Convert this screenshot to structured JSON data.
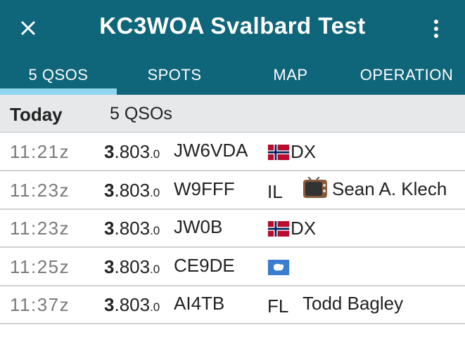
{
  "app_bar": {
    "title": "KC3WOA Svalbard Test"
  },
  "tabs": [
    "5 QSOS",
    "SPOTS",
    "MAP",
    "OPERATION"
  ],
  "summary": {
    "label": "Today",
    "count": "5 QSOs"
  },
  "qsos": [
    {
      "time": "11:21z",
      "frequency": {
        "mhz": "3",
        "khz": ".803",
        "hz": ".0"
      },
      "call": "JW6VDA",
      "entity": "DX"
    },
    {
      "time": "11:23z",
      "frequency": {
        "mhz": "3",
        "khz": ".803",
        "hz": ".0"
      },
      "call": "W9FFF",
      "state": "IL",
      "name": "Sean A. Klech"
    },
    {
      "time": "11:23z",
      "frequency": {
        "mhz": "3",
        "khz": ".803",
        "hz": ".0"
      },
      "call": "JW0B",
      "entity": "DX"
    },
    {
      "time": "11:25z",
      "frequency": {
        "mhz": "3",
        "khz": ".803",
        "hz": ".0"
      },
      "call": "CE9DE"
    },
    {
      "time": "11:37z",
      "frequency": {
        "mhz": "3",
        "khz": ".803",
        "hz": ".0"
      },
      "call": "AI4TB",
      "state": "FL",
      "name": "Todd Bagley"
    }
  ]
}
